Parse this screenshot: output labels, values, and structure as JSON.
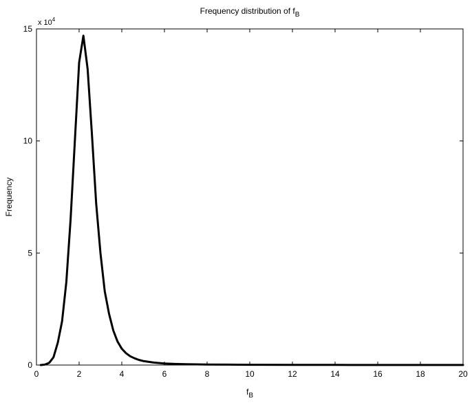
{
  "chart_data": {
    "type": "line",
    "title": {
      "text": "Frequency distribution of f",
      "sub": "B"
    },
    "xlabel": {
      "text": "f",
      "sub": "B"
    },
    "ylabel": "Frequency",
    "y_multiplier": {
      "text": "x 10",
      "exp": "4"
    },
    "xlim": [
      0,
      20
    ],
    "ylim": [
      0,
      150000
    ],
    "x_ticks": [
      0,
      2,
      4,
      6,
      8,
      10,
      12,
      14,
      16,
      18,
      20
    ],
    "y_ticks": [
      0,
      50000,
      100000,
      150000
    ],
    "y_tick_labels": [
      "0",
      "5",
      "10",
      "15"
    ],
    "grid": false,
    "line_color": "#000000",
    "series": [
      {
        "x": [
          0.2,
          0.4,
          0.6,
          0.8,
          1.0,
          1.2,
          1.4,
          1.6,
          1.8,
          2.0,
          2.2,
          2.4,
          2.6,
          2.8,
          3.0,
          3.2,
          3.4,
          3.6,
          3.8,
          4.0,
          4.2,
          4.4,
          4.6,
          4.8,
          5.0,
          5.5,
          6.0,
          6.5,
          7.0,
          8.0,
          9.0,
          10.0,
          12.0,
          14.0,
          16.0,
          18.0,
          20.0
        ],
        "y": [
          0,
          200,
          1000,
          3500,
          10000,
          19500,
          37000,
          65000,
          100000,
          135000,
          147000,
          132000,
          103000,
          72000,
          50000,
          33000,
          23000,
          15500,
          10500,
          7300,
          5300,
          3900,
          3000,
          2300,
          1800,
          1100,
          700,
          500,
          380,
          250,
          180,
          130,
          80,
          50,
          35,
          25,
          20
        ]
      }
    ]
  }
}
